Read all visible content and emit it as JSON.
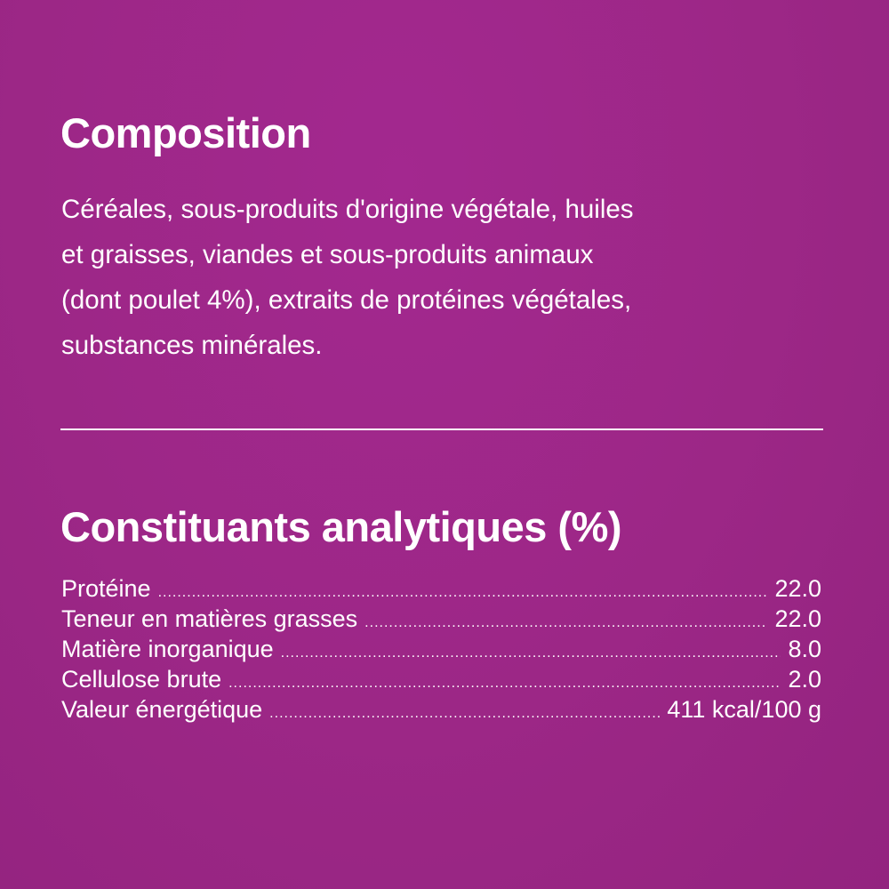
{
  "composition": {
    "title": "Composition",
    "lines": [
      "Céréales, sous-produits d'origine végétale, huiles",
      "et graisses, viandes et sous-produits animaux",
      "(dont poulet 4%), extraits de protéines végétales,",
      "substances minérales."
    ]
  },
  "analytical": {
    "title": "Constituants analytiques (%)",
    "rows": [
      {
        "label": "Protéine",
        "value": "22.0"
      },
      {
        "label": "Teneur en matières grasses",
        "value": "22.0"
      },
      {
        "label": "Matière inorganique",
        "value": "8.0"
      },
      {
        "label": "Cellulose brute",
        "value": "2.0"
      },
      {
        "label": "Valeur énergétique",
        "value": "411 kcal/100 g"
      }
    ]
  },
  "colors": {
    "background": "#9c2786",
    "text": "#ffffff"
  }
}
